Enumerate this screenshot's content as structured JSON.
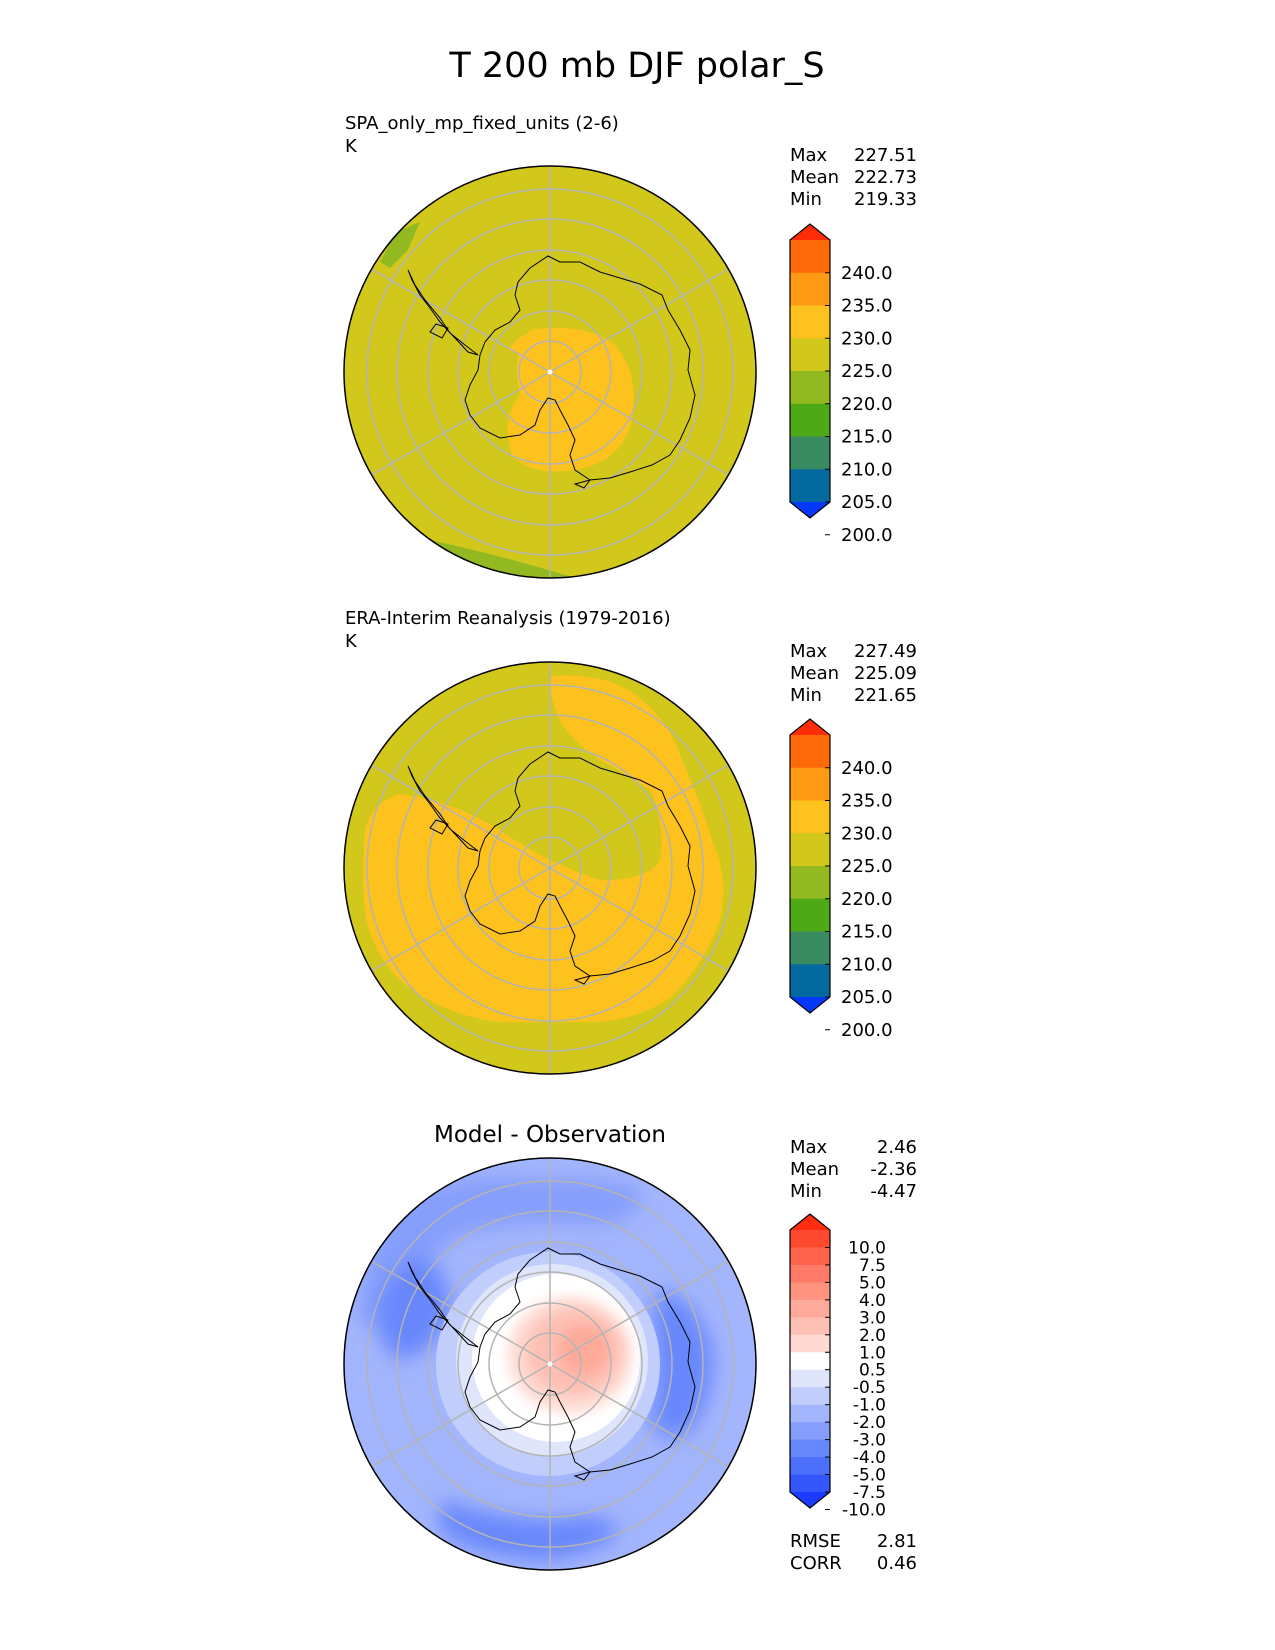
{
  "figure_title": "T 200 mb DJF polar_S",
  "stat_labels": {
    "max": "Max",
    "mean": "Mean",
    "min": "Min",
    "rmse": "RMSE",
    "corr": "CORR"
  },
  "panels": [
    {
      "title": "SPA_only_mp_fixed_units (2-6)",
      "units": "K",
      "stats": {
        "max": "227.51",
        "mean": "222.73",
        "min": "219.33"
      }
    },
    {
      "title": "ERA-Interim Reanalysis (1979-2016)",
      "units": "K",
      "stats": {
        "max": "227.49",
        "mean": "225.09",
        "min": "221.65"
      }
    },
    {
      "title": "Model - Observation",
      "stats": {
        "max": "2.46",
        "mean": "-2.36",
        "min": "-4.47",
        "rmse": "2.81",
        "corr": "0.46"
      }
    }
  ],
  "chart_data": [
    {
      "type": "heatmap",
      "projection": "south-polar-stereographic",
      "title": "SPA_only_mp_fixed_units (2-6)",
      "units": "K",
      "colorbar": {
        "ticks": [
          "240.0",
          "235.0",
          "230.0",
          "225.0",
          "220.0",
          "215.0",
          "210.0",
          "205.0",
          "200.0"
        ],
        "colors_top_to_bottom": [
          "#fe2d08",
          "#fe6a0a",
          "#fe9a14",
          "#fdc21e",
          "#d2c81c",
          "#92ba20",
          "#4daa16",
          "#3a8a62",
          "#04699e",
          "#0538fa"
        ],
        "extend": "both"
      },
      "field": {
        "background_value": 222.5,
        "polar_warm_patch_value": 227.5,
        "low_lat_edge_value": 217.5
      },
      "stats": {
        "max": 227.51,
        "mean": 222.73,
        "min": 219.33
      }
    },
    {
      "type": "heatmap",
      "projection": "south-polar-stereographic",
      "title": "ERA-Interim Reanalysis (1979-2016)",
      "units": "K",
      "colorbar": {
        "ticks": [
          "240.0",
          "235.0",
          "230.0",
          "225.0",
          "220.0",
          "215.0",
          "210.0",
          "205.0",
          "200.0"
        ],
        "colors_top_to_bottom": [
          "#fe2d08",
          "#fe6a0a",
          "#fe9a14",
          "#fdc21e",
          "#d2c81c",
          "#92ba20",
          "#4daa16",
          "#3a8a62",
          "#04699e",
          "#0538fa"
        ],
        "extend": "both"
      },
      "field": {
        "background_value": 222.5,
        "warm_band_value": 227.5
      },
      "stats": {
        "max": 227.49,
        "mean": 225.09,
        "min": 221.65
      }
    },
    {
      "type": "heatmap",
      "projection": "south-polar-stereographic",
      "title": "Model - Observation",
      "colorbar": {
        "ticks": [
          "10.0",
          "7.5",
          "5.0",
          "4.0",
          "3.0",
          "2.0",
          "1.0",
          "0.5",
          "-0.5",
          "-1.0",
          "-2.0",
          "-3.0",
          "-4.0",
          "-5.0",
          "-7.5",
          "-10.0"
        ],
        "colors_top_to_bottom": [
          "#fe2d10",
          "#fe4a2e",
          "#fe644c",
          "#fe7a66",
          "#fe9380",
          "#feaa9a",
          "#fec0b4",
          "#fedad2",
          "#ffffff",
          "#dfe5fb",
          "#c1cdfb",
          "#a3b5fc",
          "#859efc",
          "#6787fc",
          "#4c70fc",
          "#3457fc",
          "#1b3cfc"
        ],
        "extend": "both"
      },
      "stats": {
        "max": 2.46,
        "mean": -2.36,
        "min": -4.47,
        "rmse": 2.81,
        "corr": 0.46
      }
    }
  ],
  "colors": {
    "grid": "#b4b4b4",
    "coast": "#000000",
    "frame": "#000000"
  }
}
